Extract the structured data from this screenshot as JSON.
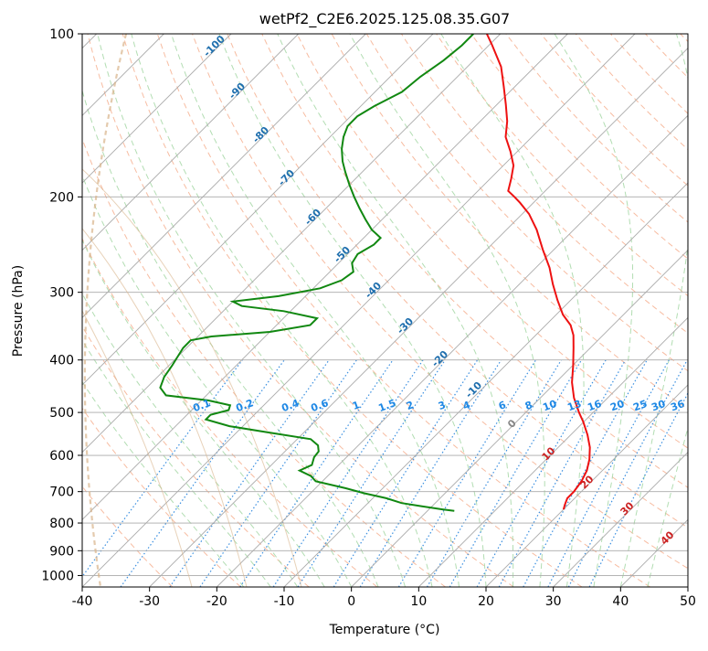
{
  "chart_data": {
    "type": "line",
    "chart_kind": "skew-t log-p diagram",
    "title": "wetPf2_C2E6.2025.125.08.35.G07",
    "xlabel": "Temperature (°C)",
    "ylabel": "Pressure (hPa)",
    "xlim": [
      -40,
      50
    ],
    "ylim": [
      1050,
      100
    ],
    "y_scale": "log",
    "skew": "isotherms tilted 45 degrees",
    "grid": true,
    "x_ticks": [
      "-40",
      "-30",
      "-20",
      "-10",
      "0",
      "10",
      "20",
      "30",
      "40",
      "50"
    ],
    "y_ticks": [
      "100",
      "200",
      "300",
      "400",
      "500",
      "600",
      "700",
      "800",
      "900",
      "1000"
    ],
    "series": [
      {
        "role": "temperature",
        "color": "#ee1111",
        "points": [
          [
            755,
            20.0
          ],
          [
            740,
            19.5
          ],
          [
            720,
            18.9
          ],
          [
            700,
            18.9
          ],
          [
            670,
            18.5
          ],
          [
            640,
            17.7
          ],
          [
            610,
            16.4
          ],
          [
            580,
            14.7
          ],
          [
            550,
            12.5
          ],
          [
            520,
            9.9
          ],
          [
            500,
            7.9
          ],
          [
            470,
            5.0
          ],
          [
            440,
            2.4
          ],
          [
            410,
            0.1
          ],
          [
            380,
            -2.5
          ],
          [
            360,
            -4.4
          ],
          [
            345,
            -6.3
          ],
          [
            330,
            -9.0
          ],
          [
            310,
            -12.0
          ],
          [
            290,
            -15.0
          ],
          [
            270,
            -18.0
          ],
          [
            250,
            -21.7
          ],
          [
            230,
            -25.5
          ],
          [
            215,
            -29.0
          ],
          [
            205,
            -32.0
          ],
          [
            200,
            -33.7
          ],
          [
            195,
            -35.5
          ],
          [
            185,
            -36.9
          ],
          [
            175,
            -38.5
          ],
          [
            165,
            -41.0
          ],
          [
            155,
            -43.9
          ],
          [
            145,
            -46.0
          ],
          [
            135,
            -48.7
          ],
          [
            125,
            -51.7
          ],
          [
            115,
            -55.0
          ],
          [
            105,
            -59.5
          ],
          [
            100,
            -62.0
          ]
        ]
      },
      {
        "role": "dewpoint",
        "color": "#118811",
        "points": [
          [
            760,
            4.0
          ],
          [
            755,
            2.0
          ],
          [
            745,
            -1.5
          ],
          [
            735,
            -5.0
          ],
          [
            720,
            -8.0
          ],
          [
            705,
            -12.0
          ],
          [
            690,
            -15.5
          ],
          [
            670,
            -21.0
          ],
          [
            655,
            -22.5
          ],
          [
            640,
            -25.0
          ],
          [
            625,
            -24.0
          ],
          [
            605,
            -24.8
          ],
          [
            590,
            -25.0
          ],
          [
            575,
            -26.0
          ],
          [
            560,
            -28.0
          ],
          [
            545,
            -35.0
          ],
          [
            530,
            -42.0
          ],
          [
            515,
            -46.5
          ],
          [
            505,
            -46.5
          ],
          [
            495,
            -44.5
          ],
          [
            485,
            -45.0
          ],
          [
            475,
            -49.0
          ],
          [
            465,
            -56.0
          ],
          [
            450,
            -58.0
          ],
          [
            430,
            -59.0
          ],
          [
            410,
            -59.5
          ],
          [
            395,
            -60.0
          ],
          [
            380,
            -60.5
          ],
          [
            368,
            -60.5
          ],
          [
            362,
            -58.0
          ],
          [
            355,
            -50.0
          ],
          [
            345,
            -45.0
          ],
          [
            335,
            -45.0
          ],
          [
            325,
            -51.0
          ],
          [
            318,
            -58.0
          ],
          [
            312,
            -60.0
          ],
          [
            305,
            -54.0
          ],
          [
            295,
            -49.0
          ],
          [
            285,
            -47.0
          ],
          [
            275,
            -46.5
          ],
          [
            265,
            -48.0
          ],
          [
            255,
            -48.5
          ],
          [
            245,
            -47.5
          ],
          [
            238,
            -47.5
          ],
          [
            230,
            -50.0
          ],
          [
            220,
            -52.5
          ],
          [
            210,
            -55.0
          ],
          [
            200,
            -57.5
          ],
          [
            190,
            -60.0
          ],
          [
            180,
            -62.5
          ],
          [
            172,
            -64.5
          ],
          [
            163,
            -66.5
          ],
          [
            155,
            -68.0
          ],
          [
            148,
            -69.0
          ],
          [
            142,
            -69.0
          ],
          [
            136,
            -68.0
          ],
          [
            128,
            -66.0
          ],
          [
            120,
            -65.5
          ],
          [
            112,
            -64.5
          ],
          [
            105,
            -64.0
          ],
          [
            100,
            -64.0
          ]
        ]
      }
    ],
    "dry_adiabat_labels": [
      "-100",
      "-90",
      "-80",
      "-70",
      "-60",
      "-50",
      "-40",
      "-30",
      "-20",
      "-10"
    ],
    "dry_adiabat_label_color": "#1f6fae",
    "moist_adiabat_labels": [
      "0",
      "10",
      "20",
      "30",
      "40"
    ],
    "moist_adiabat_label_color": "#cc2222",
    "mixing_ratio_labels": [
      "0.1",
      "0.2",
      "0.4",
      "0.6",
      "1",
      "1.5",
      "2",
      "3",
      "4",
      "6",
      "8",
      "10",
      "13",
      "16",
      "20",
      "25",
      "30",
      "36"
    ],
    "mixing_ratio_label_color": "#1e88e5",
    "zero_label": "0",
    "colors": {
      "isotherm": "#aaaaaa",
      "isobar": "#aaaaaa",
      "dry_adiabat": "#f4a582",
      "moist_adiabat": "#9fd49f",
      "mixing_ratio": "#3a8fe0",
      "dry_curve": "#d8b48a"
    }
  }
}
